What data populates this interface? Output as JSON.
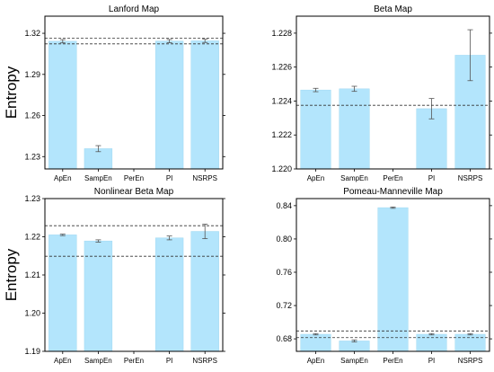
{
  "shared": {
    "ylabel": "Entropy",
    "bar_color": "#b3e5fc",
    "bar_stroke": "#9fd8f2"
  },
  "chart_data": [
    {
      "type": "bar",
      "title": "Lanford Map",
      "categories": [
        "ApEn",
        "SampEn",
        "PerEn",
        "PI",
        "NSRPS"
      ],
      "values": [
        1.3142,
        1.2358,
        null,
        1.3143,
        1.3145
      ],
      "errors": [
        0.0012,
        0.0022,
        null,
        0.0012,
        0.0012
      ],
      "ylim": [
        1.221,
        1.3325
      ],
      "yticks": [
        "1.23",
        "1.26",
        "1.29",
        "1.32"
      ],
      "hlines": [
        1.3165,
        1.3123
      ],
      "ylabel": "Entropy"
    },
    {
      "type": "bar",
      "title": "Beta Map",
      "categories": [
        "ApEn",
        "SampEn",
        "PerEn",
        "PI",
        "NSRPS"
      ],
      "values": [
        1.22465,
        1.22472,
        null,
        1.22355,
        1.2267
      ],
      "errors": [
        0.0001,
        0.00015,
        null,
        0.0006,
        0.0015
      ],
      "ylim": [
        1.22,
        1.229
      ],
      "yticks": [
        "1.220",
        "1.222",
        "1.224",
        "1.226",
        "1.228"
      ],
      "hlines": [
        1.22375
      ],
      "ylabel": ""
    },
    {
      "type": "bar",
      "title": "Nonlinear Beta Map",
      "categories": [
        "ApEn",
        "SampEn",
        "PerEn",
        "PI",
        "NSRPS"
      ],
      "values": [
        1.2205,
        1.2189,
        null,
        1.2197,
        1.2214
      ],
      "errors": [
        0.0002,
        0.0003,
        null,
        0.0005,
        0.0019
      ],
      "ylim": [
        1.19,
        1.23
      ],
      "yticks": [
        "1.19",
        "1.20",
        "1.21",
        "1.22",
        "1.23"
      ],
      "hlines": [
        1.2229,
        1.2149
      ],
      "ylabel": "Entropy"
    },
    {
      "type": "bar",
      "title": "Pomeau-Manneville Map",
      "categories": [
        "ApEn",
        "SampEn",
        "PerEn",
        "PI",
        "NSRPS"
      ],
      "values": [
        0.6855,
        0.6775,
        0.8376,
        0.6855,
        0.6855
      ],
      "errors": [
        0.0008,
        0.0012,
        0.0008,
        0.0008,
        0.0008
      ],
      "ylim": [
        0.665,
        0.8485
      ],
      "yticks": [
        "0.68",
        "0.72",
        "0.76",
        "0.80",
        "0.84"
      ],
      "hlines": [
        0.6895,
        0.6815
      ],
      "ylabel": ""
    }
  ]
}
